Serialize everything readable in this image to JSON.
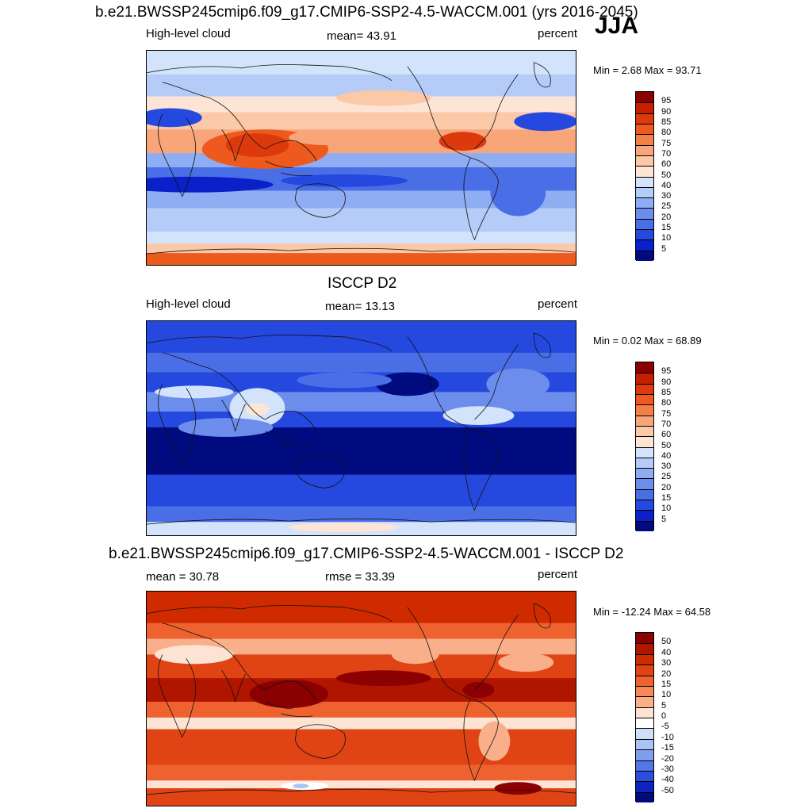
{
  "season": "JJA",
  "panels": [
    {
      "title": "b.e21.BWSSP245cmip6.f09_g17.CMIP6-SSP2-4.5-WACCM.001 (yrs 2016-2045)",
      "left_label": "High-level cloud",
      "center_label": "mean=  43.91",
      "right_label": "percent",
      "minmax": "Min =   2.68 Max =  93.71",
      "colorbar": {
        "labels": [
          "95",
          "90",
          "85",
          "80",
          "75",
          "70",
          "60",
          "50",
          "40",
          "30",
          "25",
          "20",
          "15",
          "10",
          "5"
        ],
        "colors": [
          "#8b0000",
          "#c41f00",
          "#dc3a0c",
          "#ee5a1e",
          "#f57f48",
          "#f9a57a",
          "#fbc8a8",
          "#fde5d6",
          "#d2e3fb",
          "#b4ccf7",
          "#8fadf2",
          "#6d8ded",
          "#4a6ee6",
          "#2548df",
          "#0a20c8",
          "#000b80"
        ]
      },
      "map_field": "model"
    },
    {
      "title": "ISCCP D2",
      "left_label": "High-level cloud",
      "center_label": "mean=  13.13",
      "right_label": "percent",
      "minmax": "Min =   0.02 Max =  68.89",
      "colorbar": {
        "labels": [
          "95",
          "90",
          "85",
          "80",
          "75",
          "70",
          "60",
          "50",
          "40",
          "30",
          "25",
          "20",
          "15",
          "10",
          "5"
        ],
        "colors": [
          "#8b0000",
          "#c41f00",
          "#dc3a0c",
          "#ee5a1e",
          "#f57f48",
          "#f9a57a",
          "#fbc8a8",
          "#fde5d6",
          "#d2e3fb",
          "#b4ccf7",
          "#8fadf2",
          "#6d8ded",
          "#4a6ee6",
          "#2548df",
          "#0a20c8",
          "#000b80"
        ]
      },
      "map_field": "obs"
    },
    {
      "title": "b.e21.BWSSP245cmip6.f09_g17.CMIP6-SSP2-4.5-WACCM.001 - ISCCP D2",
      "left_label": "mean =  30.78",
      "center_label": "rmse =  33.39",
      "right_label": "percent",
      "minmax": "Min = -12.24 Max =  64.58",
      "colorbar": {
        "labels": [
          "50",
          "40",
          "30",
          "20",
          "15",
          "10",
          "5",
          "0",
          "-5",
          "-10",
          "-15",
          "-20",
          "-30",
          "-40",
          "-50"
        ],
        "colors": [
          "#8b0000",
          "#b01500",
          "#cf2a00",
          "#e04414",
          "#ee6230",
          "#f5885a",
          "#f9b08a",
          "#fde3d3",
          "#ffffff",
          "#cfdffa",
          "#a9c3f4",
          "#7f9fee",
          "#5577e6",
          "#2a4fdc",
          "#0c23c0",
          "#000b80"
        ]
      },
      "map_field": "diff"
    }
  ]
}
